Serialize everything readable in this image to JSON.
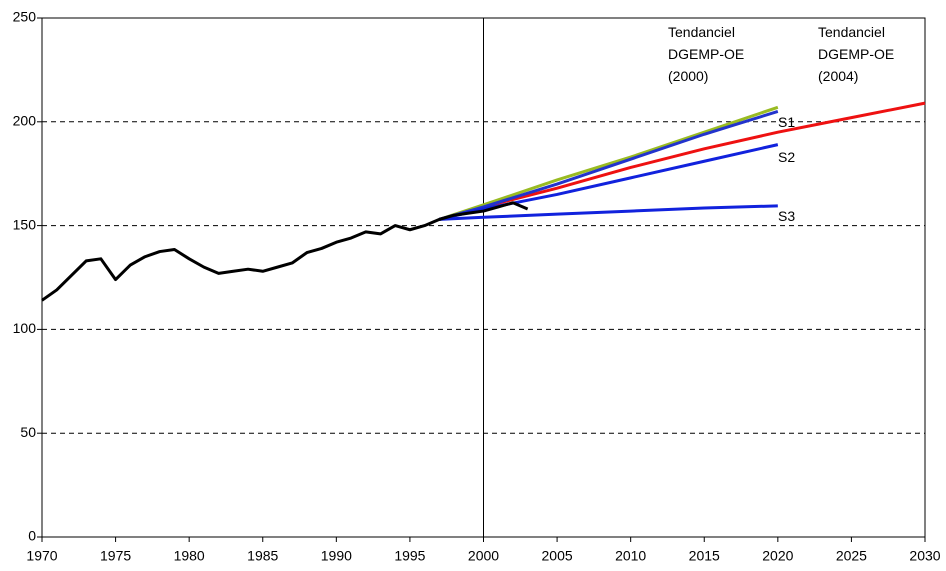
{
  "chart_data": {
    "type": "line",
    "xlim": [
      1970,
      2030
    ],
    "xticks": [
      1970,
      1975,
      1980,
      1985,
      1990,
      1995,
      2000,
      2005,
      2010,
      2015,
      2020,
      2025,
      2030
    ],
    "ylim": [
      0,
      250
    ],
    "yticks": [
      0,
      50,
      100,
      150,
      200,
      250
    ],
    "grid": true,
    "vline": 2000,
    "series": [
      {
        "name": "Tendanciel DGEMP-OE (2004)",
        "color": "#ee1111",
        "x": [
          1997,
          2000,
          2005,
          2010,
          2015,
          2020,
          2025,
          2030
        ],
        "values": [
          153,
          159,
          168,
          178,
          187,
          195,
          202,
          209
        ]
      },
      {
        "name": "Tendanciel DGEMP-OE (2000)",
        "color": "#99bb22",
        "x": [
          1997,
          2000,
          2005,
          2010,
          2015,
          2020
        ],
        "values": [
          153,
          160,
          172,
          183,
          195,
          207
        ]
      },
      {
        "name": "S1",
        "color": "#2233cc",
        "x": [
          1997,
          2000,
          2005,
          2010,
          2015,
          2020
        ],
        "values": [
          153,
          159,
          170,
          182,
          194,
          205
        ]
      },
      {
        "name": "S2",
        "color": "#1122dd",
        "x": [
          1997,
          2000,
          2005,
          2010,
          2015,
          2020
        ],
        "values": [
          153,
          158,
          165,
          173,
          181,
          189
        ]
      },
      {
        "name": "S3",
        "color": "#1122dd",
        "x": [
          1997,
          2000,
          2005,
          2010,
          2015,
          2020
        ],
        "values": [
          153,
          154,
          155.5,
          157,
          158.5,
          159.5
        ]
      },
      {
        "color": "#000000",
        "x": [
          1970,
          1971,
          1972,
          1973,
          1974,
          1975,
          1976,
          1977,
          1978,
          1979,
          1980,
          1981,
          1982,
          1983,
          1984,
          1985,
          1986,
          1987,
          1988,
          1989,
          1990,
          1991,
          1992,
          1993,
          1994,
          1995,
          1996,
          1997,
          1998,
          1999,
          2000,
          2001,
          2002,
          2003
        ],
        "values": [
          114,
          119,
          126,
          133,
          134,
          124,
          131,
          135,
          137.5,
          138.5,
          134,
          130,
          127,
          128,
          129,
          128,
          130,
          132,
          137,
          139,
          142,
          144,
          147,
          146,
          150,
          148,
          150,
          153,
          155,
          156,
          157,
          159,
          161,
          158
        ]
      }
    ]
  }
}
